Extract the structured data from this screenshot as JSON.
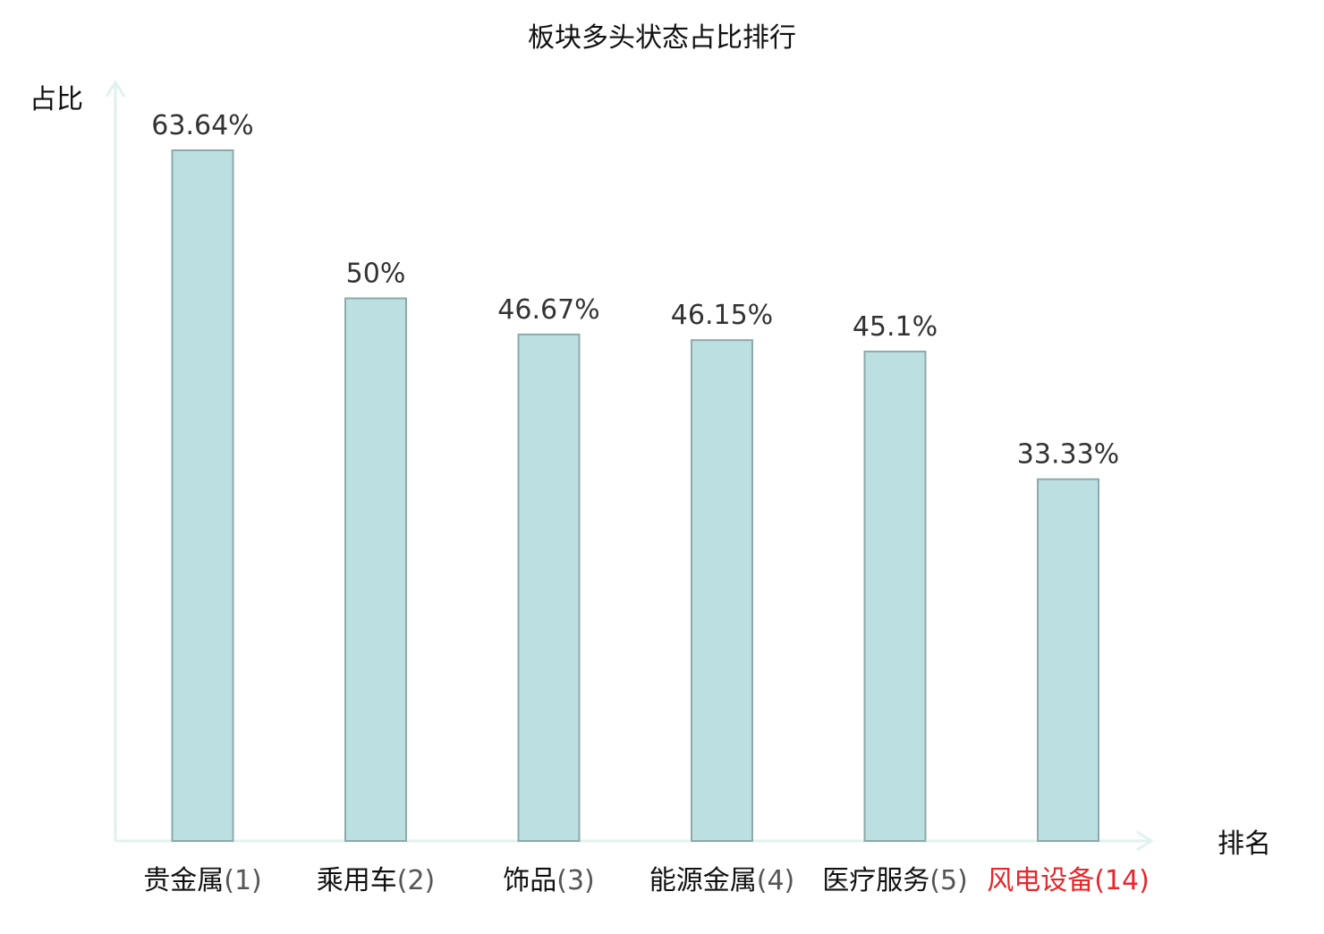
{
  "chart_data": {
    "type": "bar",
    "title": "板块多头状态占比排行",
    "ylabel": "占比",
    "xlabel": "排名",
    "categories": [
      {
        "name": "贵金属",
        "rank": "(1)",
        "highlight": false
      },
      {
        "name": "乘用车",
        "rank": "(2)",
        "highlight": false
      },
      {
        "name": "饰品",
        "rank": "(3)",
        "highlight": false
      },
      {
        "name": "能源金属",
        "rank": "(4)",
        "highlight": false
      },
      {
        "name": "医疗服务",
        "rank": "(5)",
        "highlight": false
      },
      {
        "name": "风电设备",
        "rank": "(14)",
        "highlight": true
      }
    ],
    "values": [
      63.64,
      50,
      46.67,
      46.15,
      45.1,
      33.33
    ],
    "value_labels": [
      "63.64%",
      "50%",
      "46.67%",
      "46.15%",
      "45.1%",
      "33.33%"
    ],
    "ylim": [
      0,
      70
    ],
    "grid": false,
    "legend": "none"
  },
  "colors": {
    "bar_fill": "#bce0e2",
    "bar_stroke": "#8ea9aa",
    "axis": "#e0f2ef",
    "text": "#333333",
    "label_text": "#111111",
    "rank_text": "#555555",
    "highlight": "#e8262b"
  }
}
